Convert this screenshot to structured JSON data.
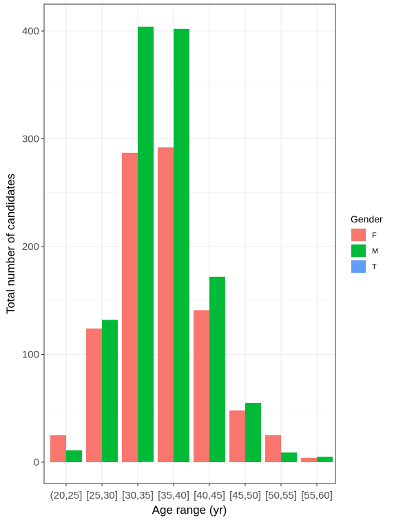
{
  "chart_data": {
    "type": "bar",
    "title": "",
    "xlabel": "Age range (yr)",
    "ylabel": "Total number of candidates",
    "categories": [
      "(20,25]",
      "[25,30]",
      "[30,35]",
      "[35,40]",
      "[40,45]",
      "[45,50]",
      "[50,55]",
      "[55,60]"
    ],
    "series": [
      {
        "name": "F",
        "color": "#F8766D",
        "values": [
          25,
          124,
          287,
          292,
          141,
          48,
          25,
          4
        ]
      },
      {
        "name": "M",
        "color": "#00BA38",
        "values": [
          11,
          132,
          404,
          402,
          172,
          55,
          9,
          5
        ]
      },
      {
        "name": "T",
        "color": "#619CFF",
        "values": [
          0,
          0,
          1,
          0,
          0,
          0,
          0,
          0
        ]
      }
    ],
    "ylim": [
      0,
      400
    ],
    "yticks": [
      0,
      100,
      200,
      300,
      400
    ],
    "grid": true,
    "legend": {
      "title": "Gender",
      "position": "right"
    }
  }
}
